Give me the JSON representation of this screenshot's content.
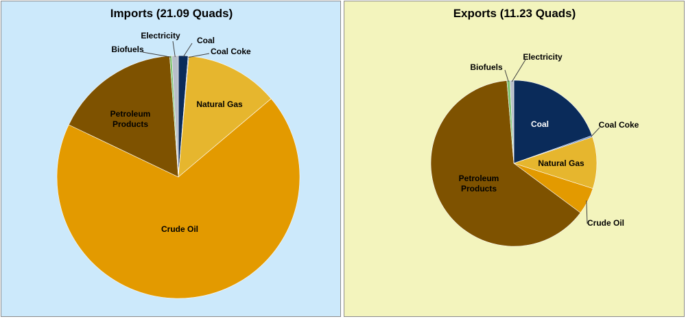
{
  "chart_data": [
    {
      "type": "pie",
      "title": "Imports (21.09 Quads)",
      "background": "#cce9fb",
      "slices": [
        {
          "name": "Coal",
          "value": 0.27,
          "color": "#0a2b5a"
        },
        {
          "name": "Coal Coke",
          "value": 0.02,
          "color": "#4f7bc9"
        },
        {
          "name": "Natural Gas",
          "value": 2.63,
          "color": "#e6b62e"
        },
        {
          "name": "Crude Oil",
          "value": 14.39,
          "color": "#e39a00"
        },
        {
          "name": "Petroleum Products",
          "value": 3.54,
          "color": "#7e5200"
        },
        {
          "name": "Biofuels",
          "value": 0.06,
          "color": "#7fc373"
        },
        {
          "name": "Electricity",
          "value": 0.18,
          "color": "#b8bec9"
        }
      ]
    },
    {
      "type": "pie",
      "title": "Exports (11.23 Quads)",
      "background": "#f3f4bd",
      "slices": [
        {
          "name": "Coal",
          "value": 2.2,
          "color": "#0a2b5a"
        },
        {
          "name": "Coal Coke",
          "value": 0.03,
          "color": "#4f7bc9"
        },
        {
          "name": "Natural Gas",
          "value": 1.13,
          "color": "#e6b62e"
        },
        {
          "name": "Crude Oil",
          "value": 0.59,
          "color": "#e39a00"
        },
        {
          "name": "Petroleum Products",
          "value": 7.13,
          "color": "#7e5200"
        },
        {
          "name": "Biofuels",
          "value": 0.07,
          "color": "#7fc373"
        },
        {
          "name": "Electricity",
          "value": 0.08,
          "color": "#b8bec9"
        }
      ]
    }
  ]
}
